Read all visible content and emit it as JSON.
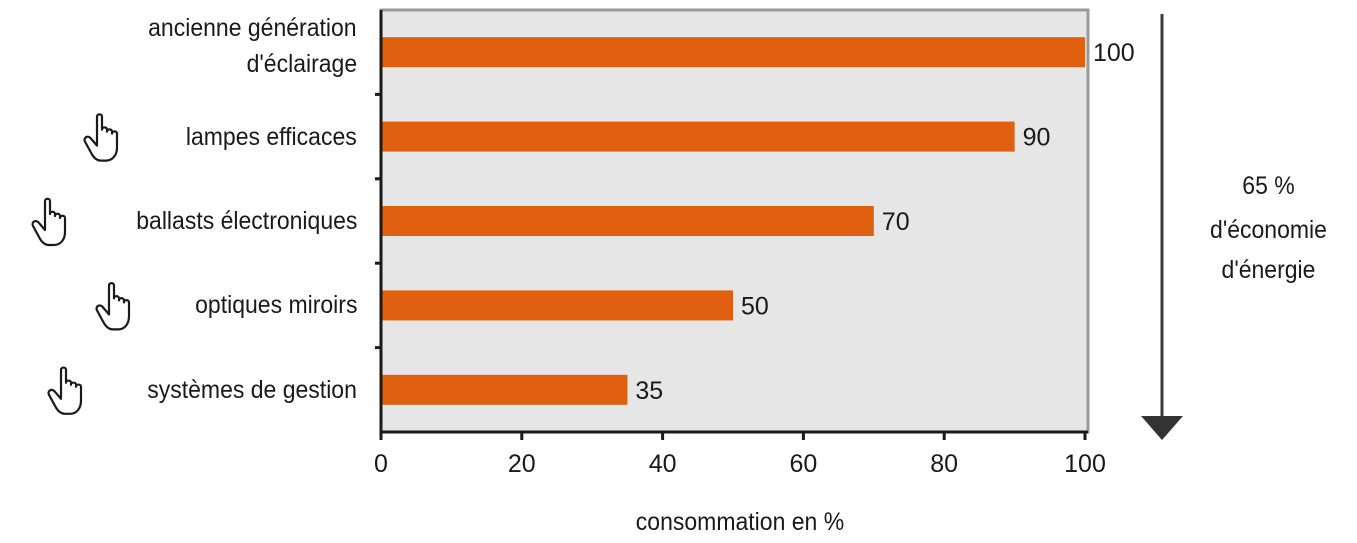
{
  "chart_data": {
    "type": "bar",
    "orientation": "horizontal",
    "categories": [
      "ancienne génération d'éclairage",
      "lampes efficaces",
      "ballasts électroniques",
      "optiques miroirs",
      "systèmes de gestion"
    ],
    "category_lines": [
      [
        "ancienne génération",
        "d'éclairage"
      ],
      [
        "lampes efficaces"
      ],
      [
        "ballasts électroniques"
      ],
      [
        "optiques miroirs"
      ],
      [
        "systèmes de gestion"
      ]
    ],
    "values": [
      100,
      90,
      70,
      50,
      35
    ],
    "data_labels": [
      "100",
      "90",
      "70",
      "50",
      "35"
    ],
    "xlabel": "consommation en %",
    "xlim": [
      0,
      100
    ],
    "xticks": [
      0,
      20,
      40,
      60,
      80,
      100
    ],
    "xtick_labels": [
      "0",
      "20",
      "40",
      "60",
      "80",
      "100"
    ],
    "bar_color": "#e0600f",
    "plot_background": "#e6e6e6",
    "grid": false,
    "hand_icon_rows": [
      1,
      2,
      3,
      4
    ],
    "annotation": {
      "lines": [
        "65 %",
        "d'économie",
        "d'énergie"
      ],
      "arrow": "down"
    }
  }
}
